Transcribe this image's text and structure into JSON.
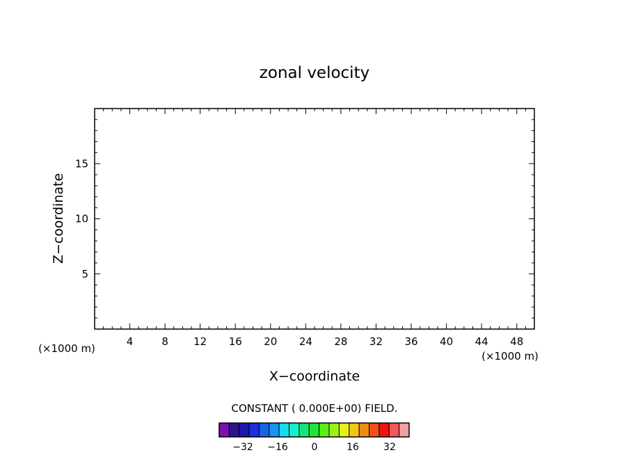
{
  "chart_data": {
    "type": "heatmap",
    "title": "zonal velocity",
    "xlabel": "X−coordinate",
    "ylabel": "Z−coordinate",
    "x_unit_left": "(×1000 m)",
    "x_unit_right": "(×1000 m)",
    "xlim": [
      0,
      50
    ],
    "ylim": [
      0,
      20
    ],
    "x_ticks": [
      4,
      8,
      12,
      16,
      20,
      24,
      28,
      32,
      36,
      40,
      44,
      48
    ],
    "y_ticks": [
      5,
      10,
      15
    ],
    "x_minor_step": 1,
    "y_minor_step": 1,
    "grid": false,
    "field_note": "CONSTANT ( 0.000E+00) FIELD.",
    "field_value": 0,
    "colorbar": {
      "colors": [
        "#7a12b0",
        "#2a1490",
        "#1a1aaa",
        "#1e2ed8",
        "#1464e6",
        "#1496f0",
        "#14dcf0",
        "#14f0c8",
        "#14e678",
        "#1ee632",
        "#5af014",
        "#a0f014",
        "#e6f014",
        "#f0c814",
        "#f08c14",
        "#f05014",
        "#f01414",
        "#f05a5a",
        "#f0a0a0"
      ],
      "tick_labels": [
        "−32",
        "−16",
        "0",
        "16",
        "32"
      ]
    }
  }
}
